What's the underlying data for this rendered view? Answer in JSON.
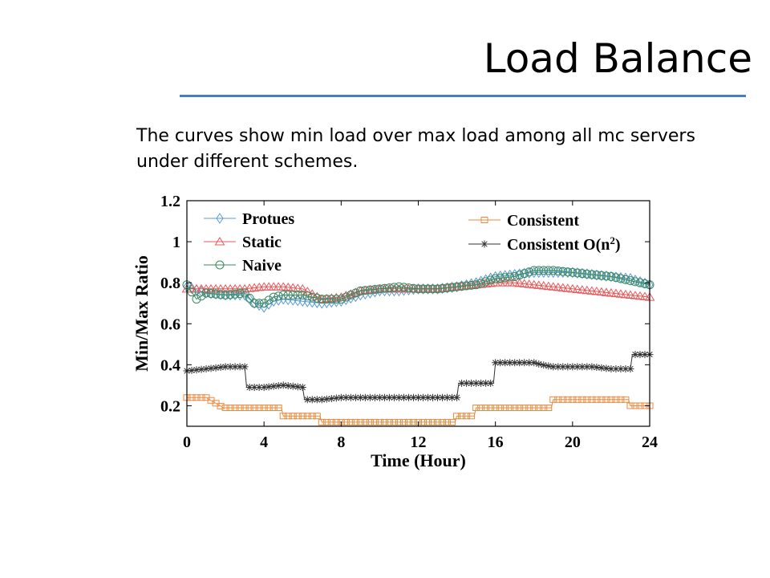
{
  "slide": {
    "title": "Load Balance",
    "body": "The curves show min load over max load among all mc servers under different schemes."
  },
  "chart_data": {
    "type": "line",
    "xlabel": "Time (Hour)",
    "ylabel": "Min/Max Ratio",
    "xlim": [
      0,
      24
    ],
    "ylim": [
      0.1,
      1.2
    ],
    "xticks": [
      "0",
      "4",
      "8",
      "12",
      "16",
      "20",
      "24"
    ],
    "yticks": [
      "0.2",
      "0.4",
      "0.6",
      "0.8",
      "1",
      "1.2"
    ],
    "legend_position": "top",
    "colors": {
      "Protues": "#5b9bd5",
      "Static": "#e8585a",
      "Naive": "#3b8a5f",
      "Consistent": "#f0883d",
      "Consistent O(n^2)": "#333333"
    },
    "series": [
      {
        "name": "Protues",
        "marker": "diamond",
        "x": [
          0,
          1,
          2,
          3,
          3.5,
          4,
          4.5,
          5,
          6,
          7,
          8,
          9,
          10,
          11,
          12,
          13,
          14,
          15,
          16,
          17,
          18,
          19,
          20,
          21,
          22,
          23,
          24
        ],
        "y": [
          0.78,
          0.75,
          0.74,
          0.74,
          0.7,
          0.68,
          0.71,
          0.72,
          0.71,
          0.7,
          0.71,
          0.74,
          0.76,
          0.76,
          0.77,
          0.77,
          0.78,
          0.8,
          0.83,
          0.84,
          0.85,
          0.85,
          0.85,
          0.84,
          0.83,
          0.82,
          0.79
        ]
      },
      {
        "name": "Static",
        "marker": "triangle",
        "x": [
          0,
          1,
          2,
          3,
          4,
          5,
          6,
          7,
          8,
          9,
          10,
          11,
          12,
          13,
          14,
          15,
          16,
          17,
          18,
          19,
          20,
          21,
          22,
          23,
          24
        ],
        "y": [
          0.77,
          0.77,
          0.77,
          0.77,
          0.78,
          0.78,
          0.77,
          0.72,
          0.73,
          0.76,
          0.77,
          0.77,
          0.77,
          0.77,
          0.78,
          0.79,
          0.8,
          0.8,
          0.79,
          0.78,
          0.77,
          0.76,
          0.75,
          0.74,
          0.73
        ]
      },
      {
        "name": "Naive",
        "marker": "circle",
        "x": [
          0,
          0.5,
          1,
          2,
          3,
          3.5,
          4,
          4.5,
          5,
          6,
          7,
          8,
          9,
          10,
          11,
          12,
          13,
          14,
          15,
          16,
          17,
          18,
          19,
          20,
          21,
          22,
          23,
          24
        ],
        "y": [
          0.79,
          0.72,
          0.75,
          0.74,
          0.75,
          0.7,
          0.7,
          0.73,
          0.74,
          0.74,
          0.72,
          0.72,
          0.76,
          0.77,
          0.78,
          0.77,
          0.77,
          0.78,
          0.79,
          0.82,
          0.83,
          0.86,
          0.86,
          0.85,
          0.84,
          0.83,
          0.81,
          0.79
        ]
      },
      {
        "name": "Consistent",
        "marker": "square",
        "x": [
          0,
          1,
          1.9,
          2,
          3,
          4.9,
          5,
          6,
          6.9,
          7,
          8,
          9,
          10,
          11,
          12,
          13,
          13.9,
          14,
          14.9,
          15,
          16,
          17,
          18,
          18.9,
          19,
          20,
          21,
          22,
          22.9,
          23,
          24
        ],
        "y": [
          0.24,
          0.24,
          0.19,
          0.19,
          0.19,
          0.19,
          0.15,
          0.15,
          0.15,
          0.12,
          0.12,
          0.12,
          0.12,
          0.12,
          0.12,
          0.12,
          0.12,
          0.15,
          0.15,
          0.19,
          0.19,
          0.19,
          0.19,
          0.19,
          0.23,
          0.23,
          0.23,
          0.23,
          0.23,
          0.2,
          0.2
        ]
      },
      {
        "name": "Consistent O(n^2)",
        "marker": "star",
        "x": [
          0,
          1,
          2,
          3,
          3.1,
          4,
          5,
          6,
          6.1,
          7,
          8,
          9,
          10,
          11,
          12,
          13,
          14,
          14.1,
          15,
          15.9,
          16,
          17,
          18,
          18.4,
          19,
          20,
          21,
          22,
          23,
          23.1,
          24
        ],
        "y": [
          0.37,
          0.38,
          0.39,
          0.39,
          0.29,
          0.29,
          0.3,
          0.29,
          0.23,
          0.23,
          0.24,
          0.24,
          0.24,
          0.24,
          0.24,
          0.24,
          0.24,
          0.31,
          0.31,
          0.31,
          0.41,
          0.41,
          0.41,
          0.4,
          0.39,
          0.39,
          0.39,
          0.38,
          0.38,
          0.45,
          0.45
        ]
      }
    ]
  }
}
